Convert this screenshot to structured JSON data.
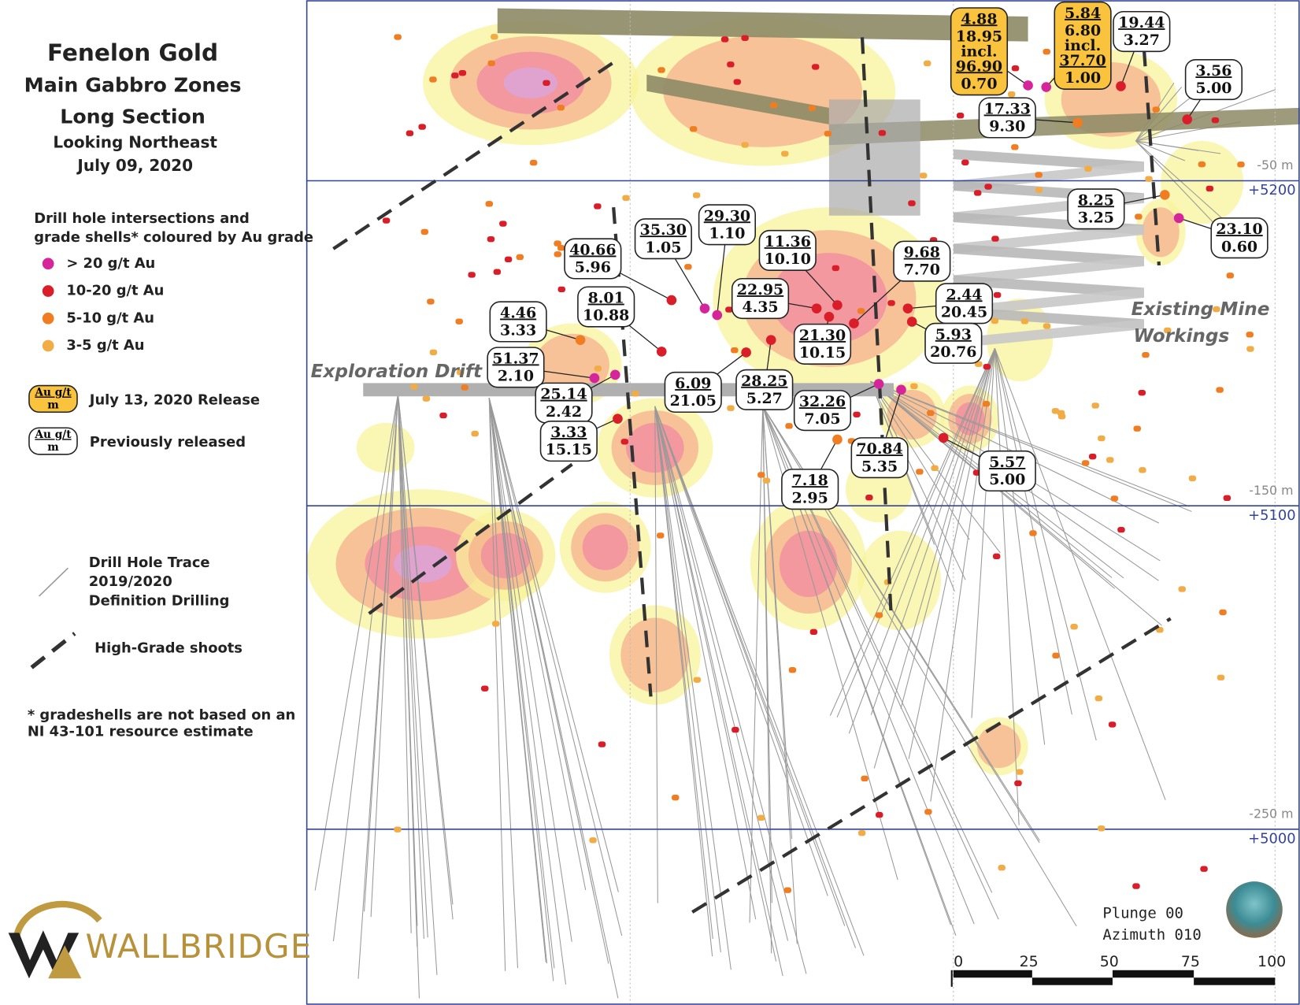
{
  "title": [
    "Fenelon Gold",
    "Main Gabbro Zones",
    "Long Section"
  ],
  "subtitle": [
    "Looking Northeast",
    "July 09, 2020"
  ],
  "legend": {
    "heading": [
      "Drill hole intersections and",
      "grade shells* coloured by Au grade"
    ],
    "grades": [
      {
        "label": "> 20 g/t Au",
        "color": "#d6259a"
      },
      {
        "label": "10-20 g/t Au",
        "color": "#d91e2a"
      },
      {
        "label": "5-10 g/t Au",
        "color": "#f07d22"
      },
      {
        "label": "3-5 g/t Au",
        "color": "#f2ac45"
      }
    ],
    "box_label": [
      "Au g/t",
      "m"
    ],
    "new_release": "July 13, 2020 Release",
    "previous": "Previously released",
    "drill_trace": [
      "Drill Hole Trace",
      "2019/2020",
      "Definition Drilling"
    ],
    "shoots": "High-Grade shoots",
    "note": [
      "* gradeshells are not based on an",
      "NI 43-101 resource estimate"
    ]
  },
  "logo": "WALLBRIDGE",
  "annotations": {
    "drift": "Exploration Drift",
    "workings": [
      "Existing Mine",
      "Workings"
    ]
  },
  "elevations": [
    {
      "depth": "-50 m",
      "level": "+5200"
    },
    {
      "depth": "-150 m",
      "level": "+5100"
    },
    {
      "depth": "-250 m",
      "level": "+5000"
    }
  ],
  "scale_bar": [
    "0",
    "25",
    "50",
    "75",
    "100"
  ],
  "view": [
    "Plunge 00",
    "Azimuth 010"
  ],
  "intersections": [
    {
      "intervals": [
        {
          "grade": "4.88",
          "width": "18.95"
        },
        {
          "grade": "96.90",
          "width": "0.70"
        }
      ],
      "separator": "incl.",
      "highlight": true
    },
    {
      "intervals": [
        {
          "grade": "5.84",
          "width": "6.80"
        },
        {
          "grade": "37.70",
          "width": "1.00"
        }
      ],
      "separator": "incl.",
      "highlight": true
    },
    {
      "intervals": [
        {
          "grade": "19.44",
          "width": "3.27"
        }
      ]
    },
    {
      "intervals": [
        {
          "grade": "3.56",
          "width": "5.00"
        }
      ]
    },
    {
      "intervals": [
        {
          "grade": "17.33",
          "width": "9.30"
        }
      ]
    },
    {
      "intervals": [
        {
          "grade": "8.25",
          "width": "3.25"
        }
      ]
    },
    {
      "intervals": [
        {
          "grade": "23.10",
          "width": "0.60"
        }
      ]
    },
    {
      "intervals": [
        {
          "grade": "35.30",
          "width": "1.05"
        }
      ]
    },
    {
      "intervals": [
        {
          "grade": "29.30",
          "width": "1.10"
        }
      ]
    },
    {
      "intervals": [
        {
          "grade": "40.66",
          "width": "5.96"
        }
      ]
    },
    {
      "intervals": [
        {
          "grade": "11.36",
          "width": "10.10"
        }
      ]
    },
    {
      "intervals": [
        {
          "grade": "9.68",
          "width": "7.70"
        }
      ]
    },
    {
      "intervals": [
        {
          "grade": "8.01",
          "width": "10.88"
        }
      ]
    },
    {
      "intervals": [
        {
          "grade": "22.95",
          "width": "4.35"
        }
      ]
    },
    {
      "intervals": [
        {
          "grade": "2.44",
          "width": "20.45"
        }
      ]
    },
    {
      "intervals": [
        {
          "grade": "4.46",
          "width": "3.33"
        }
      ]
    },
    {
      "intervals": [
        {
          "grade": "21.30",
          "width": "10.15"
        }
      ]
    },
    {
      "intervals": [
        {
          "grade": "5.93",
          "width": "20.76"
        }
      ]
    },
    {
      "intervals": [
        {
          "grade": "51.37",
          "width": "2.10"
        }
      ]
    },
    {
      "intervals": [
        {
          "grade": "25.14",
          "width": "2.42"
        }
      ]
    },
    {
      "intervals": [
        {
          "grade": "6.09",
          "width": "21.05"
        }
      ]
    },
    {
      "intervals": [
        {
          "grade": "28.25",
          "width": "5.27"
        }
      ]
    },
    {
      "intervals": [
        {
          "grade": "32.26",
          "width": "7.05"
        }
      ]
    },
    {
      "intervals": [
        {
          "grade": "3.33",
          "width": "15.15"
        }
      ]
    },
    {
      "intervals": [
        {
          "grade": "70.84",
          "width": "5.35"
        }
      ]
    },
    {
      "intervals": [
        {
          "grade": "5.57",
          "width": "5.00"
        }
      ]
    },
    {
      "intervals": [
        {
          "grade": "7.18",
          "width": "2.95"
        }
      ]
    }
  ]
}
